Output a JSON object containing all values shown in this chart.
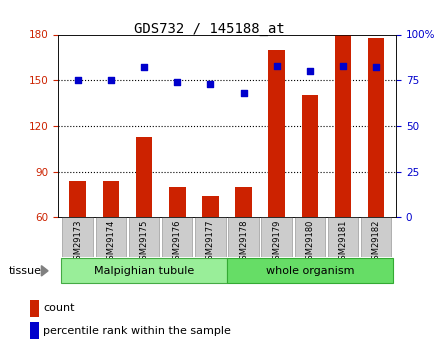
{
  "title": "GDS732 / 145188_at",
  "samples": [
    "GSM29173",
    "GSM29174",
    "GSM29175",
    "GSM29176",
    "GSM29177",
    "GSM29178",
    "GSM29179",
    "GSM29180",
    "GSM29181",
    "GSM29182"
  ],
  "bar_values": [
    84,
    84,
    113,
    80,
    74,
    80,
    170,
    140,
    180,
    178
  ],
  "scatter_values": [
    75,
    75,
    82,
    74,
    73,
    68,
    83,
    80,
    83,
    82
  ],
  "ylim_left": [
    60,
    180
  ],
  "ylim_right": [
    0,
    100
  ],
  "yticks_left": [
    60,
    90,
    120,
    150,
    180
  ],
  "yticks_right": [
    0,
    25,
    50,
    75,
    100
  ],
  "bar_color": "#cc2200",
  "scatter_color": "#0000cc",
  "background_color": "#ffffff",
  "plot_bg_color": "#ffffff",
  "tissue_labels": [
    "Malpighian tubule",
    "whole organism"
  ],
  "tissue_colors": [
    "#99ee99",
    "#66dd66"
  ],
  "xlabel_area_color": "#cccccc",
  "legend_items": [
    "count",
    "percentile rank within the sample"
  ],
  "right_axis_label": "%"
}
